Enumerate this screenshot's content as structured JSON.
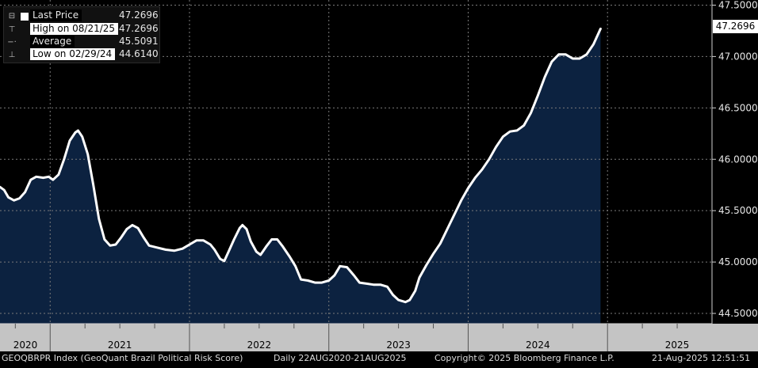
{
  "chart_data": {
    "type": "area",
    "title": "GEOQBRPR Index (GeoQuant Brazil Political Risk Score)",
    "series_name": "Last Price",
    "ylim": [
      44.4,
      47.55
    ],
    "y_ticks": [
      "47.5000",
      "47.0000",
      "46.5000",
      "46.0000",
      "45.5000",
      "45.0000",
      "44.5000"
    ],
    "y_tick_values": [
      47.5,
      47.0,
      46.5,
      46.0,
      45.5,
      45.0,
      44.5
    ],
    "x_tick_labels": [
      "2020",
      "2021",
      "2022",
      "2023",
      "2024",
      "2025"
    ],
    "x_tick_label_t": [
      2020.62,
      2021.5,
      2022.5,
      2023.5,
      2024.5,
      2025.5
    ],
    "x_gridlines_t": [
      2021.0,
      2022.0,
      2023.0,
      2024.0,
      2025.0
    ],
    "x_range_t": [
      2020.64,
      2025.75
    ],
    "points": [
      [
        2020.64,
        45.73
      ],
      [
        2020.67,
        45.7
      ],
      [
        2020.7,
        45.63
      ],
      [
        2020.74,
        45.6
      ],
      [
        2020.78,
        45.62
      ],
      [
        2020.82,
        45.68
      ],
      [
        2020.86,
        45.8
      ],
      [
        2020.9,
        45.83
      ],
      [
        2020.95,
        45.82
      ],
      [
        2020.99,
        45.83
      ],
      [
        2021.02,
        45.8
      ],
      [
        2021.06,
        45.85
      ],
      [
        2021.1,
        46.0
      ],
      [
        2021.14,
        46.18
      ],
      [
        2021.18,
        46.26
      ],
      [
        2021.2,
        46.28
      ],
      [
        2021.23,
        46.22
      ],
      [
        2021.27,
        46.05
      ],
      [
        2021.31,
        45.75
      ],
      [
        2021.35,
        45.42
      ],
      [
        2021.39,
        45.22
      ],
      [
        2021.43,
        45.16
      ],
      [
        2021.47,
        45.17
      ],
      [
        2021.51,
        45.24
      ],
      [
        2021.55,
        45.32
      ],
      [
        2021.59,
        45.36
      ],
      [
        2021.63,
        45.33
      ],
      [
        2021.67,
        45.24
      ],
      [
        2021.71,
        45.16
      ],
      [
        2021.77,
        45.14
      ],
      [
        2021.83,
        45.12
      ],
      [
        2021.89,
        45.11
      ],
      [
        2021.95,
        45.13
      ],
      [
        2022.0,
        45.17
      ],
      [
        2022.05,
        45.21
      ],
      [
        2022.1,
        45.21
      ],
      [
        2022.15,
        45.17
      ],
      [
        2022.18,
        45.12
      ],
      [
        2022.22,
        45.03
      ],
      [
        2022.25,
        45.01
      ],
      [
        2022.28,
        45.1
      ],
      [
        2022.32,
        45.22
      ],
      [
        2022.36,
        45.33
      ],
      [
        2022.38,
        45.36
      ],
      [
        2022.41,
        45.32
      ],
      [
        2022.44,
        45.2
      ],
      [
        2022.48,
        45.1
      ],
      [
        2022.51,
        45.07
      ],
      [
        2022.55,
        45.15
      ],
      [
        2022.59,
        45.22
      ],
      [
        2022.63,
        45.22
      ],
      [
        2022.67,
        45.15
      ],
      [
        2022.72,
        45.05
      ],
      [
        2022.76,
        44.96
      ],
      [
        2022.8,
        44.83
      ],
      [
        2022.85,
        44.82
      ],
      [
        2022.9,
        44.8
      ],
      [
        2022.95,
        44.8
      ],
      [
        2023.0,
        44.82
      ],
      [
        2023.04,
        44.87
      ],
      [
        2023.08,
        44.96
      ],
      [
        2023.13,
        44.95
      ],
      [
        2023.18,
        44.87
      ],
      [
        2023.22,
        44.8
      ],
      [
        2023.27,
        44.79
      ],
      [
        2023.32,
        44.78
      ],
      [
        2023.37,
        44.78
      ],
      [
        2023.42,
        44.76
      ],
      [
        2023.46,
        44.68
      ],
      [
        2023.5,
        44.63
      ],
      [
        2023.55,
        44.61
      ],
      [
        2023.58,
        44.63
      ],
      [
        2023.62,
        44.72
      ],
      [
        2023.65,
        44.85
      ],
      [
        2023.7,
        44.97
      ],
      [
        2023.75,
        45.08
      ],
      [
        2023.8,
        45.18
      ],
      [
        2023.85,
        45.32
      ],
      [
        2023.9,
        45.46
      ],
      [
        2023.95,
        45.6
      ],
      [
        2024.0,
        45.72
      ],
      [
        2024.05,
        45.82
      ],
      [
        2024.1,
        45.9
      ],
      [
        2024.15,
        46.0
      ],
      [
        2024.2,
        46.12
      ],
      [
        2024.25,
        46.22
      ],
      [
        2024.3,
        46.27
      ],
      [
        2024.35,
        46.28
      ],
      [
        2024.4,
        46.33
      ],
      [
        2024.45,
        46.45
      ],
      [
        2024.5,
        46.62
      ],
      [
        2024.55,
        46.8
      ],
      [
        2024.6,
        46.95
      ],
      [
        2024.65,
        47.02
      ],
      [
        2024.7,
        47.02
      ],
      [
        2024.75,
        46.98
      ],
      [
        2024.8,
        46.98
      ],
      [
        2024.85,
        47.02
      ],
      [
        2024.9,
        47.12
      ],
      [
        2024.95,
        47.2696
      ]
    ],
    "line_color": "#ffffff",
    "fill_color": "#0c2240"
  },
  "legend": {
    "last_price_label": "Last Price",
    "last_price_value": "47.2696",
    "high_label": "High on 08/21/25",
    "high_value": "47.2696",
    "average_label": "Average",
    "average_value": "45.5091",
    "low_label": "Low on 02/29/24",
    "low_value": "44.6140",
    "high_icon": "high-marker-icon",
    "average_icon": "average-marker-icon",
    "low_icon": "low-marker-icon"
  },
  "price_tag": "47.2696",
  "footer": {
    "index_desc": "GEOQBRPR Index (GeoQuant Brazil Political Risk Score)",
    "range": "Daily 22AUG2020-21AUG2025",
    "copyright": "Copyright© 2025 Bloomberg Finance L.P.",
    "timestamp": "21-Aug-2025 12:51:51"
  }
}
